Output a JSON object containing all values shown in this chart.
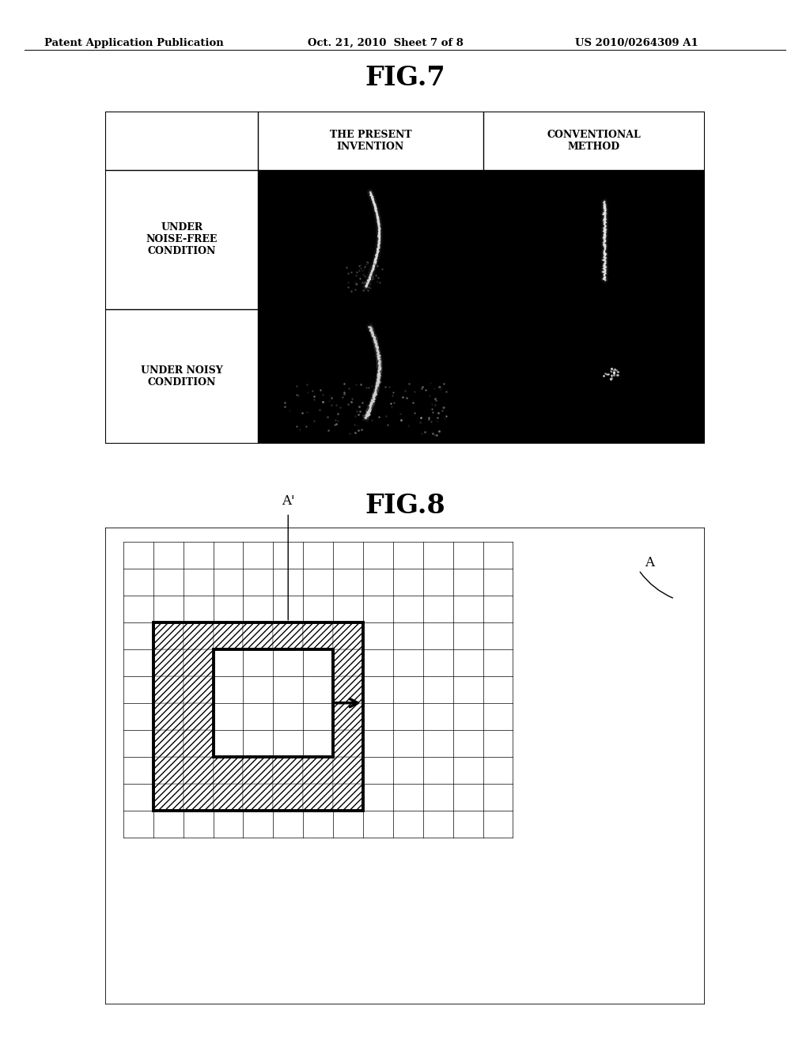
{
  "header_left": "Patent Application Publication",
  "header_mid": "Oct. 21, 2010  Sheet 7 of 8",
  "header_right": "US 2010/0264309 A1",
  "fig7_title": "FIG.7",
  "fig8_title": "FIG.8",
  "col1_header": "THE PRESENT\nINVENTION",
  "col2_header": "CONVENTIONAL\nMETHOD",
  "row1_label": "UNDER\nNOISE-FREE\nCONDITION",
  "row2_label": "UNDER NOISY\nCONDITION",
  "label_A": "A",
  "label_A_prime": "A'",
  "bg_color": "#ffffff",
  "text_color": "#000000"
}
